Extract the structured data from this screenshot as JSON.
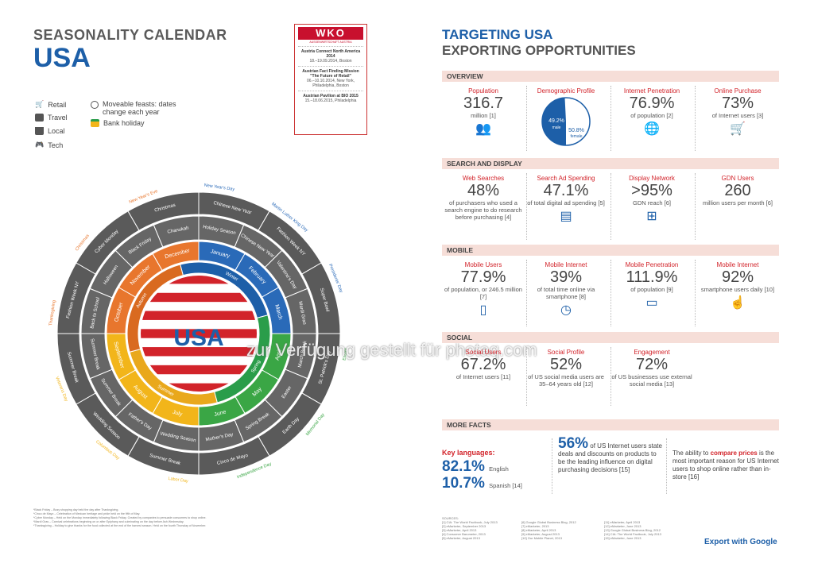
{
  "left": {
    "title": "SEASONALITY CALENDAR",
    "country": "USA",
    "legend": {
      "retail": "Retail",
      "travel": "Travel",
      "local": "Local",
      "tech": "Tech",
      "moveable": "Moveable feasts: dates change each year",
      "bank": "Bank holiday"
    }
  },
  "wko": {
    "logo": "WKO",
    "sub": "AUSSENWIRTSCHAFT AUSTRIA",
    "events": [
      {
        "title": "Austria Connect North America 2014",
        "detail": "18.–19.09.2014, Boston"
      },
      {
        "title": "Austrian Fact Finding Mission \"The Future of Retail\"",
        "detail": "06.–10.10.2014, New York, Philadelphia, Boston"
      },
      {
        "title": "Austrian Pavilion at BIO 2015",
        "detail": "15.–18.06.2015, Philadelphia"
      }
    ]
  },
  "wheel": {
    "center": "USA",
    "seasons": [
      "Winter",
      "Spring",
      "Summer",
      "Autumn"
    ],
    "months": [
      "January",
      "February",
      "March",
      "April",
      "May",
      "June",
      "July",
      "August",
      "September",
      "October",
      "November",
      "December"
    ],
    "holidays": [
      "New Year's Day",
      "Martin Luther King Day",
      "Presidents' Day",
      "Easter",
      "Memorial Day",
      "Independence Day",
      "Labor Day",
      "Columbus Day",
      "Veterans Day",
      "Thanksgiving",
      "Christmas",
      "New Year's Eve"
    ],
    "ring1": [
      "Holiday Season",
      "Chinese New Year",
      "Valentine's Day",
      "Mardi Gras",
      "March Break",
      "Easter",
      "Spring Break",
      "Mother's Day",
      "Wedding Season",
      "Father's Day",
      "Summer Break",
      "Summer Break",
      "Back to School",
      "Halloween",
      "Black Friday",
      "Chanukah"
    ],
    "ring2": [
      "Chinese New Year",
      "Fashion Week NY",
      "Super Bowl",
      "St. Patrick's Day",
      "Earth Day",
      "Cinco de Mayo",
      "Summer Break",
      "Wedding Season",
      "Summer Break",
      "Fashion Week NY",
      "Cyber Monday",
      "Christmas"
    ],
    "footnotes": [
      "*Black Friday – Busy shopping day held the day after Thanksgiving.",
      "*Cinco de Mayo – Celebration of Mexican heritage and pride held on the fifth of May.",
      "*Cyber Monday – Held on the Monday immediately following Black Friday. Created by companies to persuade consumers to shop online.",
      "*Mardi Gras – Carnival celebrations beginning on or after Epiphany and culminating on the day before Ash Wednesday.",
      "*Thanksgiving – Holiday to give thanks for the food collected at the end of the harvest season. Held on the fourth Thursday of November."
    ],
    "watermark": "zur Verfügung gestellt für photaq.com"
  },
  "right": {
    "title1": "TARGETING USA",
    "title2": "EXPORTING OPPORTUNITIES",
    "overview": {
      "header": "OVERVIEW",
      "population": {
        "head": "Population",
        "value": "316.7",
        "sub": "million [1]"
      },
      "demo": {
        "head": "Demographic Profile",
        "male": "49.2%",
        "male_l": "male",
        "female": "50.8%",
        "female_l": "female",
        "ref": "[1]",
        "male_share": 49.2
      },
      "internet": {
        "head": "Internet Penetration",
        "value": "76.9%",
        "sub": "of population [2]"
      },
      "purchase": {
        "head": "Online Purchase",
        "value": "73%",
        "sub": "of Internet users [3]"
      }
    },
    "search": {
      "header": "SEARCH AND DISPLAY",
      "c1": {
        "head": "Web Searches",
        "value": "48%",
        "sub": "of purchasers who used a search engine to do research before purchasing [4]"
      },
      "c2": {
        "head": "Search Ad Spending",
        "value": "47.1%",
        "sub": "of total digital ad spending [5]"
      },
      "c3": {
        "head": "Display Network",
        "value": ">95%",
        "sub": "GDN reach [6]"
      },
      "c4": {
        "head": "GDN Users",
        "value": "260",
        "sub": "million users per month [6]"
      }
    },
    "mobile": {
      "header": "MOBILE",
      "c1": {
        "head": "Mobile Users",
        "value": "77.9%",
        "sub": "of population, or 246.5 million [7]"
      },
      "c2": {
        "head": "Mobile Internet",
        "value": "39%",
        "sub": "of total time online via smartphone [8]"
      },
      "c3": {
        "head": "Mobile Penetration",
        "value": "111.9%",
        "sub": "of population [9]"
      },
      "c4": {
        "head": "Mobile Internet",
        "value": "92%",
        "sub": "smartphone users daily [10]"
      }
    },
    "social": {
      "header": "SOCIAL",
      "c1": {
        "head": "Social Users",
        "value": "67.2%",
        "sub": "of Internet users [11]"
      },
      "c2": {
        "head": "Social Profile",
        "value": "52%",
        "sub": "of US social media users are 35–64 years old [12]"
      },
      "c3": {
        "head": "Engagement",
        "value": "72%",
        "sub": "of US businesses use external social media [13]"
      }
    },
    "more": {
      "header": "MORE FACTS",
      "kl_head": "Key languages:",
      "english_v": "82.1%",
      "english_l": "English",
      "spanish_v": "10.7%",
      "spanish_l": "Spanish [14]",
      "fact2_v": "56%",
      "fact2_t": "of US Internet users state deals and discounts on products to be the leading influence on digital purchasing decisions [15]",
      "fact3_a": "The ability to ",
      "fact3_b": "compare prices",
      "fact3_c": " is the most important reason for US Internet users to shop online rather than in-store [16]"
    },
    "sources_title": "SOURCES:",
    "sources": [
      [
        "[1] CIA: The World Factbook, July 2013",
        "[6] Google Global Business Blog, 2012",
        "[11] eMarketer, April 2013"
      ],
      [
        "[2] eMarketer, September 2013",
        "[7] eMarketer, 2013",
        "[12] eMarketer, June 2013"
      ],
      [
        "[3] eMarketer, April 2013",
        "[8] eMarketer, April 2013",
        "[13] Google Global Business Blog, 2012"
      ],
      [
        "[4] Consumer Barometer, 2013",
        "[9] eMarketer, August 2013",
        "[14] CIA: The World Factbook, July 2013"
      ],
      [
        "[5] eMarketer, August 2013",
        "[10] Our Mobile Planet, 2013",
        "[15] eMarketer, June 2013"
      ]
    ],
    "export": "Export with Google"
  }
}
